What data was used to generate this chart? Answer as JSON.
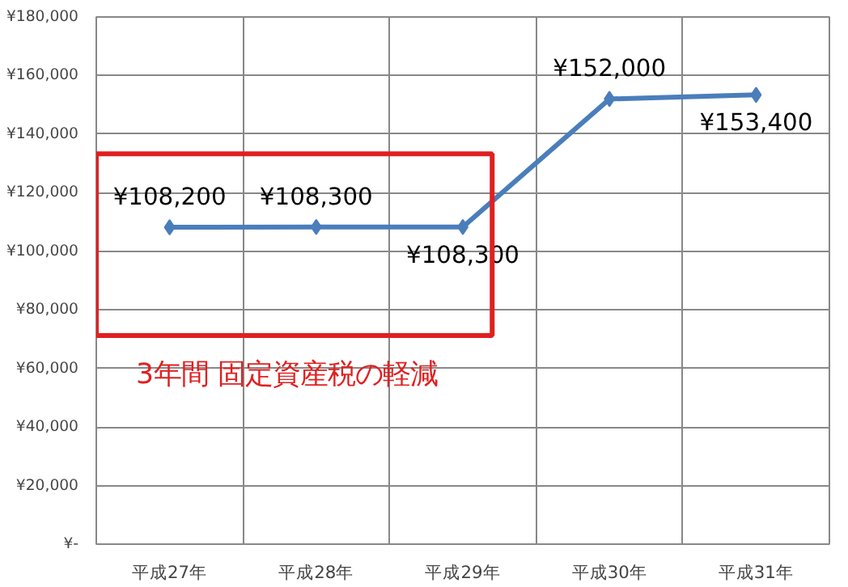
{
  "chart_data": {
    "type": "line",
    "categories": [
      "平成27年",
      "平成28年",
      "平成29年",
      "平成30年",
      "平成31年"
    ],
    "series": [
      {
        "color": "#4a7ebb",
        "values": [
          108200,
          108300,
          108300,
          152000,
          153400
        ]
      }
    ],
    "value_labels": [
      "¥108,200",
      "¥108,300",
      "¥108,300",
      "¥152,000",
      "¥153,400"
    ],
    "ylim": [
      0,
      180000
    ],
    "yticks": [
      {
        "value": 0,
        "label": "¥-"
      },
      {
        "value": 20000,
        "label": "¥20,000"
      },
      {
        "value": 40000,
        "label": "¥40,000"
      },
      {
        "value": 60000,
        "label": "¥60,000"
      },
      {
        "value": 80000,
        "label": "¥80,000"
      },
      {
        "value": 100000,
        "label": "¥100,000"
      },
      {
        "value": 120000,
        "label": "¥120,000"
      },
      {
        "value": 140000,
        "label": "¥140,000"
      },
      {
        "value": 160000,
        "label": "¥160,000"
      },
      {
        "value": 180000,
        "label": "¥180,000"
      }
    ],
    "grid": true,
    "marker": "diamond",
    "line_style": "solid",
    "annotations": [
      "3年間 固定資産税の軽減"
    ]
  }
}
